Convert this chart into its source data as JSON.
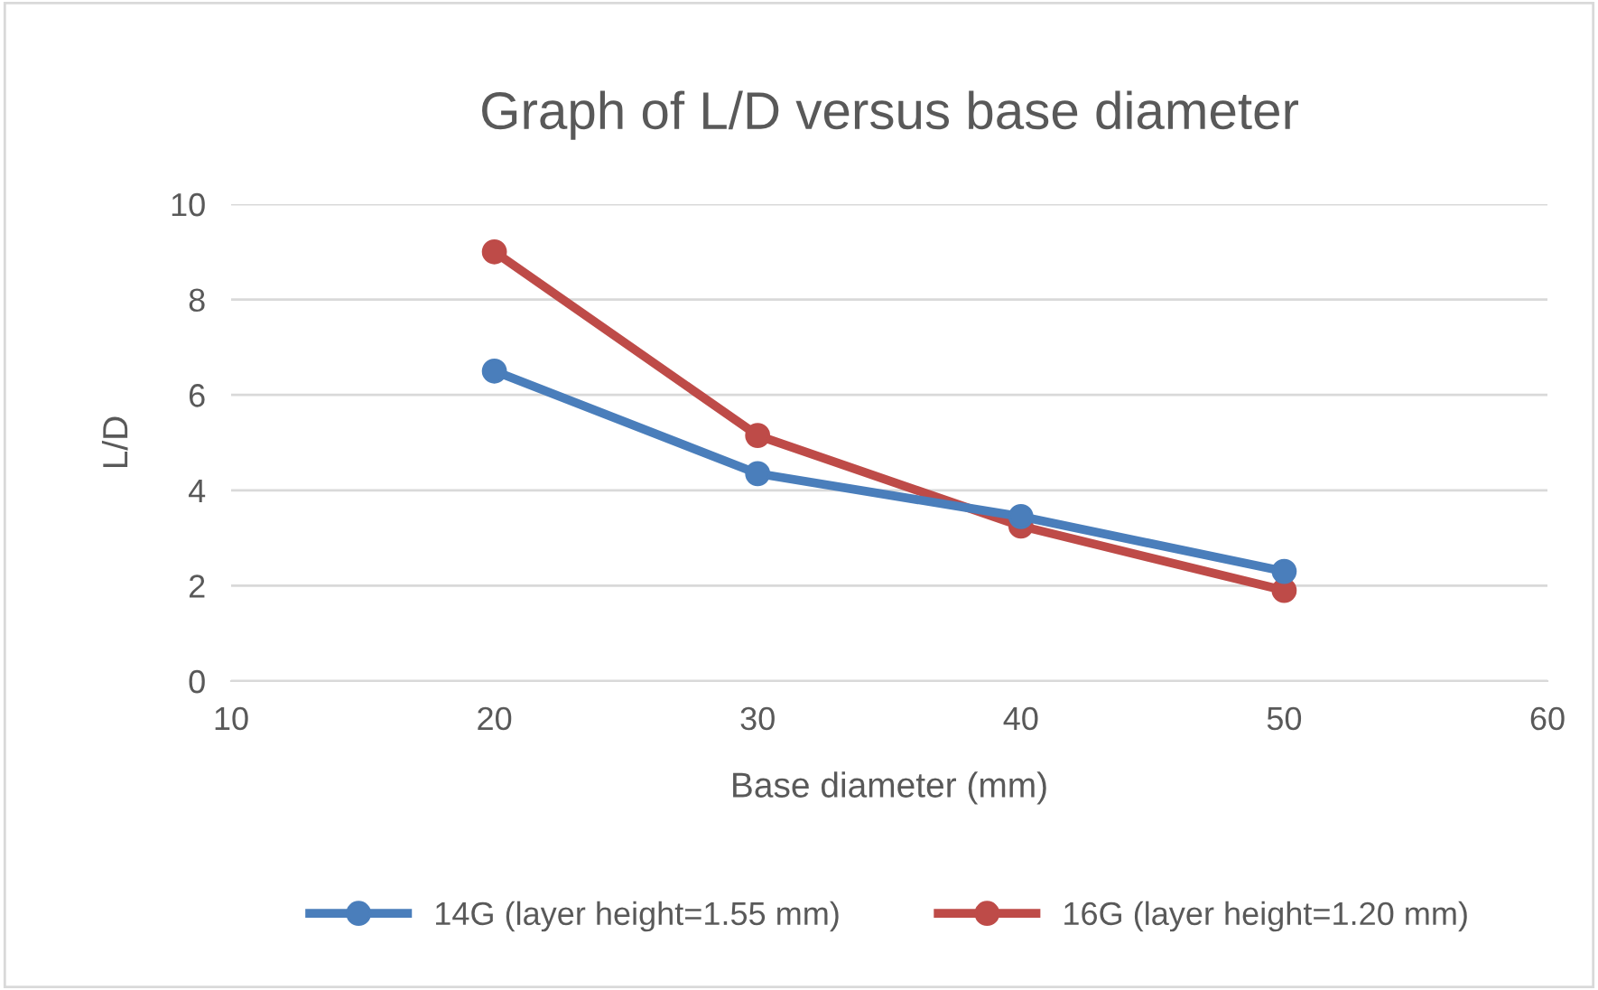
{
  "chart_data": {
    "type": "line",
    "title": "Graph of L/D versus base diameter",
    "xlabel": "Base diameter (mm)",
    "ylabel": "L/D",
    "x": [
      20,
      30,
      40,
      50
    ],
    "series": [
      {
        "name": "14G (layer height=1.55 mm)",
        "color": "#4a7ebb",
        "values": [
          6.5,
          4.35,
          3.45,
          2.3
        ]
      },
      {
        "name": "16G (layer height=1.20 mm)",
        "color": "#be4b48",
        "values": [
          9.0,
          5.15,
          3.25,
          1.9
        ]
      }
    ],
    "xlim": [
      10,
      60
    ],
    "xticks": [
      10,
      20,
      30,
      40,
      50,
      60
    ],
    "ylim": [
      0,
      10
    ],
    "yticks": [
      0,
      2,
      4,
      6,
      8,
      10
    ],
    "grid": "y",
    "legend": "bottom",
    "marker": "circle",
    "line_style": "solid"
  }
}
